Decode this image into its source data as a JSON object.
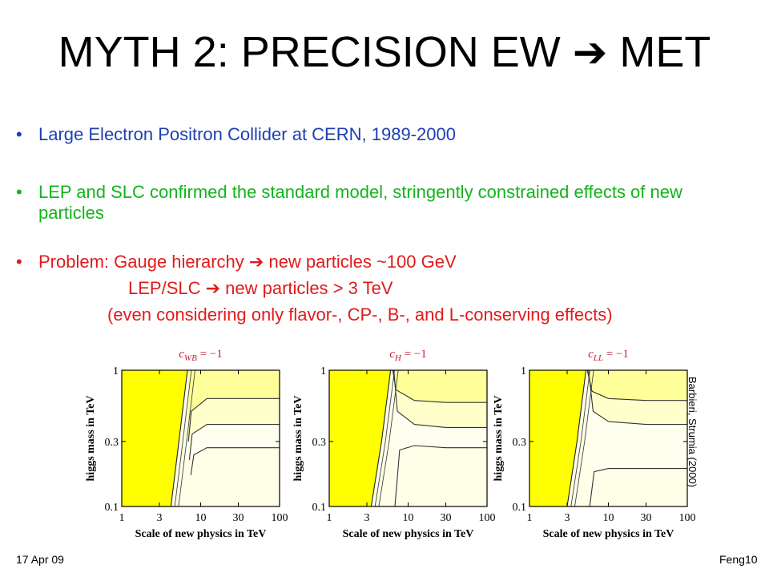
{
  "slide": {
    "title_left": "MYTH 2: PRECISION EW ",
    "title_arrow": "➔",
    "title_right": " MET",
    "bullets": [
      {
        "dot": "•",
        "text": "Large Electron Positron Collider at CERN, 1989-2000"
      },
      {
        "dot": "•",
        "text": "LEP and SLC confirmed the standard model, stringently constrained effects of new particles"
      },
      {
        "dot": "•",
        "text_a": "Problem: Gauge hierarchy ",
        "arrow": "➔",
        "text_b": " new particles ~100 GeV"
      }
    ],
    "problem_line2_a": "LEP/SLC ",
    "problem_line2_arrow": "➔",
    "problem_line2_b": " new particles > 3 TeV",
    "problem_line3": "(even considering only flavor-, CP-, B-, and L-conserving effects)",
    "credit": "Barbieri, Strumia (2000)",
    "footer_date": "17 Apr 09",
    "footer_author": "Feng",
    "footer_page": "10"
  },
  "colors": {
    "bullet1": "#1d3fb5",
    "bullet2": "#12b51b",
    "bullet3": "#e01b1b",
    "panel_title": "#c41e3a",
    "excluded_fill": "#ffff00",
    "contour_fill_1": "#ffff99",
    "contour_fill_2": "#ffffcc",
    "contour_fill_3": "#fffff0"
  },
  "chart_data": [
    {
      "type": "contour",
      "title_var": "c",
      "title_sub": "WB",
      "title_rest": " = −1",
      "xlabel": "Scale of new physics in TeV",
      "ylabel": "higgs mass in TeV",
      "x_scale": "log",
      "y_scale": "log",
      "xlim": [
        1,
        100
      ],
      "ylim": [
        0.1,
        1
      ],
      "x_ticks": [
        1,
        3,
        10,
        30,
        100
      ],
      "x_tick_labels": [
        "1",
        "3",
        "10",
        "30",
        "100"
      ],
      "y_ticks": [
        0.1,
        0.3,
        1
      ],
      "y_tick_labels": [
        "0.1",
        "0.3",
        "1"
      ],
      "excluded_boundary": {
        "x": [
          4.2,
          5.3,
          6.8
        ],
        "y": [
          0.1,
          0.3,
          1
        ]
      },
      "contours": [
        {
          "x": [
            7.0,
            7.6,
            12,
            30,
            100
          ],
          "y": [
            0.3,
            0.5,
            0.62,
            0.62,
            0.62
          ]
        },
        {
          "x": [
            7.2,
            7.8,
            12,
            30,
            100
          ],
          "y": [
            0.22,
            0.34,
            0.4,
            0.4,
            0.4
          ]
        },
        {
          "x": [
            7.5,
            8.2,
            12,
            30,
            100
          ],
          "y": [
            0.17,
            0.24,
            0.27,
            0.27,
            0.27
          ]
        }
      ]
    },
    {
      "type": "contour",
      "title_var": "c",
      "title_sub": "H",
      "title_rest": " = −1",
      "xlabel": "Scale of new physics in TeV",
      "ylabel": "higgs mass in TeV",
      "x_scale": "log",
      "y_scale": "log",
      "xlim": [
        1,
        100
      ],
      "ylim": [
        0.1,
        1
      ],
      "x_ticks": [
        1,
        3,
        10,
        30,
        100
      ],
      "x_tick_labels": [
        "1",
        "3",
        "10",
        "30",
        "100"
      ],
      "y_ticks": [
        0.1,
        0.3,
        1
      ],
      "y_tick_labels": [
        "0.1",
        "0.3",
        "1"
      ],
      "excluded_boundary": {
        "x": [
          3.4,
          4.6,
          6.0
        ],
        "y": [
          0.1,
          0.3,
          1
        ]
      },
      "contours": [
        {
          "x": [
            6.4,
            7.0,
            12,
            30,
            100
          ],
          "y": [
            1.0,
            0.72,
            0.6,
            0.58,
            0.58
          ]
        },
        {
          "x": [
            6.6,
            7.3,
            12,
            30,
            100
          ],
          "y": [
            1.0,
            0.5,
            0.4,
            0.38,
            0.38
          ]
        },
        {
          "x": [
            6.8,
            7.8,
            12,
            30,
            100
          ],
          "y": [
            0.1,
            0.26,
            0.28,
            0.27,
            0.27
          ]
        }
      ]
    },
    {
      "type": "contour",
      "title_var": "c",
      "title_sub": "LL",
      "title_rest": " = −1",
      "xlabel": "Scale of new physics in TeV",
      "ylabel": "higgs mass in TeV",
      "x_scale": "log",
      "y_scale": "log",
      "xlim": [
        1,
        100
      ],
      "ylim": [
        0.1,
        1
      ],
      "x_ticks": [
        1,
        3,
        10,
        30,
        100
      ],
      "x_tick_labels": [
        "1",
        "3",
        "10",
        "30",
        "100"
      ],
      "y_ticks": [
        0.1,
        0.3,
        1
      ],
      "y_tick_labels": [
        "0.1",
        "0.3",
        "1"
      ],
      "excluded_boundary": {
        "x": [
          3.0,
          4.0,
          5.2
        ],
        "y": [
          0.1,
          0.3,
          1
        ]
      },
      "contours": [
        {
          "x": [
            5.4,
            6.2,
            10,
            30,
            100
          ],
          "y": [
            1.0,
            0.7,
            0.62,
            0.6,
            0.6
          ]
        },
        {
          "x": [
            5.6,
            6.4,
            10,
            30,
            100
          ],
          "y": [
            1.0,
            0.5,
            0.42,
            0.4,
            0.4
          ]
        },
        {
          "x": [
            5.8,
            6.6,
            10,
            30,
            100
          ],
          "y": [
            0.1,
            0.18,
            0.19,
            0.19,
            0.19
          ]
        }
      ]
    }
  ]
}
